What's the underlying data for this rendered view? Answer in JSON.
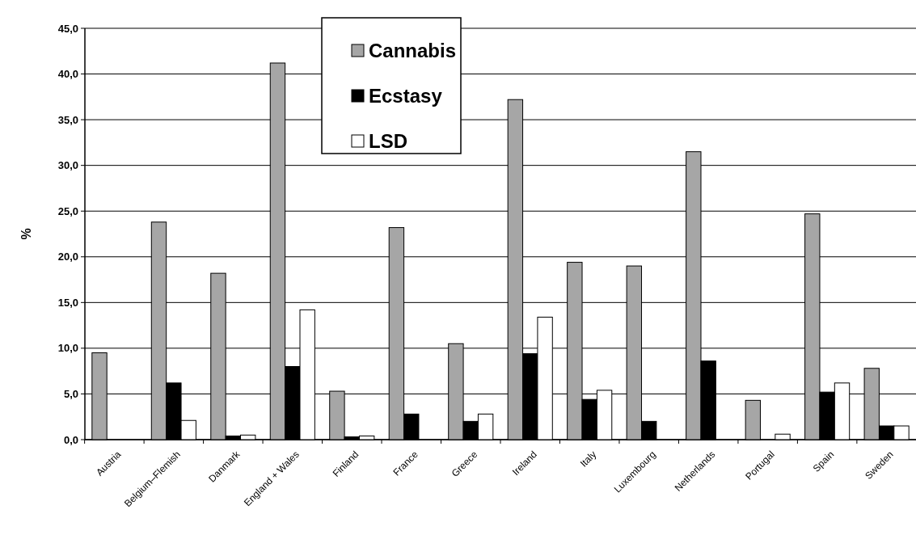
{
  "chart_data": {
    "type": "bar",
    "ylabel": "%",
    "categories": [
      "Austria",
      "Belgium–Flemish",
      "Danmark",
      "England + Wales",
      "Finland",
      "France",
      "Greece",
      "Ireland",
      "Italy",
      "Luxembourg",
      "Netherlands",
      "Portugal",
      "Spain",
      "Sweden"
    ],
    "series": [
      {
        "name": "Cannabis",
        "color": "#a6a6a6",
        "values": [
          9.5,
          23.8,
          18.2,
          41.2,
          5.3,
          23.2,
          10.5,
          37.2,
          19.4,
          19.0,
          31.5,
          4.3,
          24.7,
          7.8
        ]
      },
      {
        "name": "Ecstasy",
        "color": "#000000",
        "values": [
          0,
          6.2,
          0.4,
          8.0,
          0.3,
          2.8,
          2.0,
          9.4,
          4.4,
          2.0,
          8.6,
          0,
          5.2,
          1.5
        ]
      },
      {
        "name": "LSD",
        "color": "#ffffff",
        "values": [
          0,
          2.1,
          0.5,
          14.2,
          0.4,
          0,
          2.8,
          13.4,
          5.4,
          0,
          0,
          0.6,
          6.2,
          1.5
        ]
      }
    ],
    "ylim": [
      0,
      45
    ],
    "yticks": [
      {
        "value": 0,
        "label": "0,0"
      },
      {
        "value": 5,
        "label": "5,0"
      },
      {
        "value": 10,
        "label": "10,0"
      },
      {
        "value": 15,
        "label": "15,0"
      },
      {
        "value": 20,
        "label": "20,0"
      },
      {
        "value": 25,
        "label": "25,0"
      },
      {
        "value": 30,
        "label": "30,0"
      },
      {
        "value": 35,
        "label": "35,0"
      },
      {
        "value": 40,
        "label": "40,0"
      },
      {
        "value": 45,
        "label": "45,0"
      }
    ],
    "grid": "y",
    "legend": "top"
  }
}
